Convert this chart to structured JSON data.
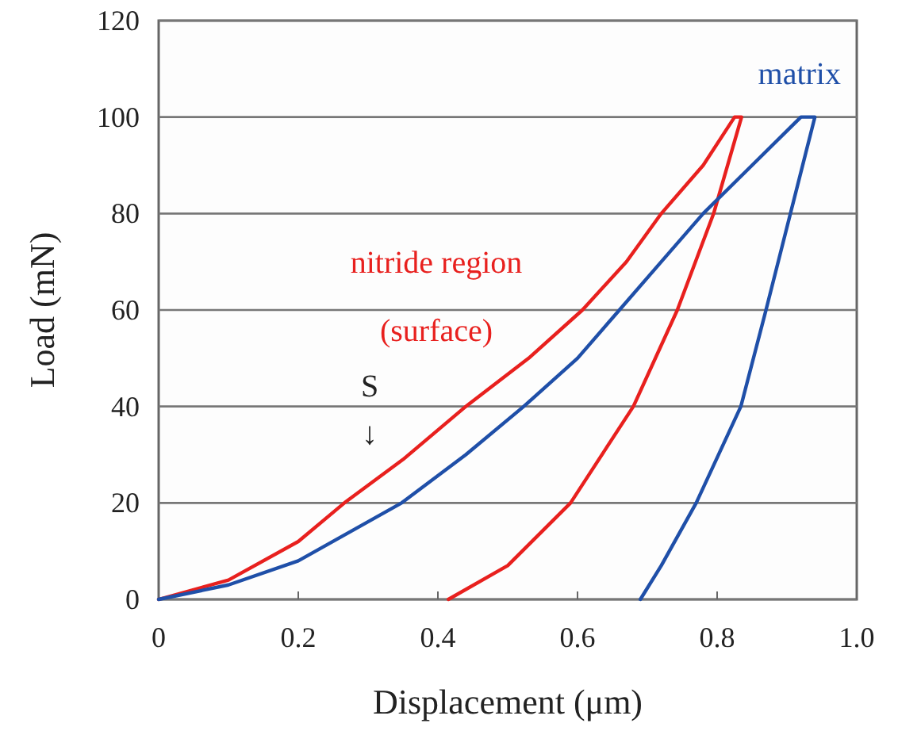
{
  "chart_data": {
    "type": "line",
    "xlabel": "Displacement (μm)",
    "ylabel": "Load (mN)",
    "xlim": [
      0,
      1.0
    ],
    "ylim": [
      0,
      120
    ],
    "xticks": [
      0,
      0.2,
      0.4,
      0.6,
      0.8,
      {
        "value": 1.0,
        "label": "1.0"
      }
    ],
    "yticks": [
      0,
      20,
      40,
      60,
      80,
      100,
      120
    ],
    "grid": "y",
    "marker": "none",
    "line_style": "solid",
    "series": [
      {
        "name": "nitride region (surface)",
        "color": "#e8201e",
        "x": [
          0,
          0.1,
          0.2,
          0.266,
          0.35,
          0.44,
          0.53,
          0.607,
          0.67,
          0.72,
          0.78,
          0.825,
          0.835,
          0.795,
          0.743,
          0.68,
          0.59,
          0.5,
          0.415
        ],
        "values": [
          0,
          4,
          12,
          20,
          29,
          40,
          50,
          60,
          70,
          80,
          90,
          100,
          100,
          80,
          60,
          40,
          20,
          7,
          0
        ]
      },
      {
        "name": "matrix",
        "color": "#1f4fa8",
        "x": [
          0,
          0.1,
          0.2,
          0.348,
          0.44,
          0.523,
          0.6,
          0.66,
          0.72,
          0.78,
          0.85,
          0.92,
          0.94,
          0.905,
          0.87,
          0.834,
          0.77,
          0.72,
          0.69
        ],
        "values": [
          0,
          3,
          8,
          20,
          30,
          40,
          50,
          60,
          70,
          80,
          90,
          100,
          100,
          80,
          60,
          40,
          20,
          7,
          0
        ]
      }
    ],
    "annotations": [
      "S\n↓"
    ]
  }
}
